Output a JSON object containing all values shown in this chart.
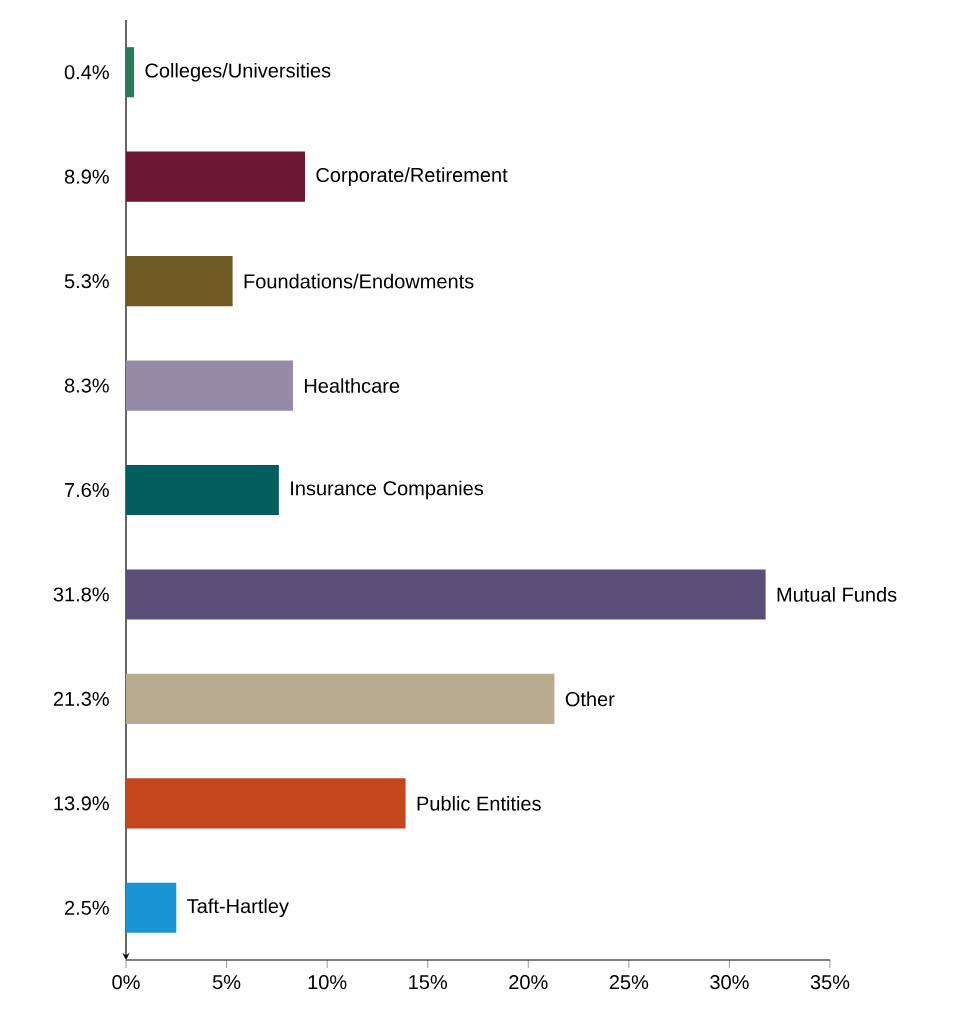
{
  "chart_data": {
    "type": "bar",
    "orientation": "horizontal",
    "categories": [
      "Colleges/Universities",
      "Corporate/Retirement",
      "Foundations/Endowments",
      "Healthcare",
      "Insurance Companies",
      "Mutual Funds",
      "Other",
      "Public Entities",
      "Taft-Hartley"
    ],
    "values": [
      0.4,
      8.9,
      5.3,
      8.3,
      7.6,
      31.8,
      21.3,
      13.9,
      2.5
    ],
    "value_labels": [
      "0.4%",
      "8.9%",
      "5.3%",
      "8.3%",
      "7.6%",
      "31.8%",
      "21.3%",
      "13.9%",
      "2.5%"
    ],
    "colors": [
      "#2a7a58",
      "#6b1733",
      "#6e5a22",
      "#968aa8",
      "#035f5e",
      "#5a4f78",
      "#b8ab8f",
      "#c4461d",
      "#1995d3"
    ],
    "xlim": [
      0,
      35
    ],
    "xticks": [
      {
        "value": 0,
        "label": "0%"
      },
      {
        "value": 5,
        "label": "5%"
      },
      {
        "value": 10,
        "label": "10%"
      },
      {
        "value": 15,
        "label": "15%"
      },
      {
        "value": 20,
        "label": "20%"
      },
      {
        "value": 25,
        "label": "25%"
      },
      {
        "value": 30,
        "label": "30%"
      },
      {
        "value": 35,
        "label": "35%"
      }
    ]
  }
}
